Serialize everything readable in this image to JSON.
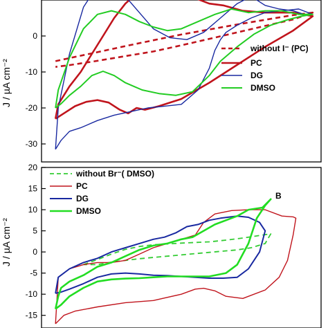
{
  "chart_data": [
    {
      "type": "line",
      "panel": "top",
      "ylabel": "J / µA cm⁻²",
      "ylim": [
        -35,
        10
      ],
      "yticks": [
        0,
        -10,
        -20,
        -30
      ],
      "xlim": [
        0,
        1
      ],
      "legend_position": "right",
      "series": [
        {
          "name": "without I⁻ (PC)",
          "color": "#c0141c",
          "style": "dashed",
          "width": 2.6,
          "x": [
            0.05,
            0.12,
            0.2,
            0.3,
            0.4,
            0.5,
            0.6,
            0.7,
            0.8,
            0.9,
            0.97,
            0.9,
            0.8,
            0.7,
            0.6,
            0.5,
            0.4,
            0.3,
            0.2,
            0.1,
            0.05
          ],
          "y": [
            -7,
            -5.8,
            -4.5,
            -2.8,
            -1.2,
            0.4,
            1.8,
            3.2,
            4.5,
            5.8,
            6.5,
            4.6,
            2.8,
            1.0,
            -0.8,
            -2.6,
            -4.3,
            -5.6,
            -6.9,
            -8.1,
            -8.6
          ]
        },
        {
          "name": "PC",
          "color": "#c0141c",
          "style": "solid",
          "width": 2.6,
          "x": [
            0.05,
            0.08,
            0.12,
            0.16,
            0.2,
            0.24,
            0.28,
            0.31,
            0.34,
            0.37,
            0.42,
            0.5,
            0.6,
            0.7,
            0.8,
            0.9,
            0.97,
            0.9,
            0.8,
            0.72,
            0.65,
            0.6,
            0.55,
            0.5,
            0.45,
            0.4,
            0.35,
            0.3,
            0.26,
            0.22,
            0.18,
            0.14,
            0.1,
            0.06,
            0.05
          ],
          "y": [
            -23,
            -21.5,
            -19.5,
            -18.3,
            -17.8,
            -18.5,
            -20.5,
            -21.5,
            -20.0,
            -20.5,
            -19.5,
            -17.5,
            -13,
            -8,
            -3,
            1.5,
            5.5,
            6.5,
            6.5,
            7.0,
            8.5,
            9.0,
            10.5,
            12.0,
            13.5,
            14.0,
            12.5,
            9.0,
            5.0,
            0.0,
            -5.0,
            -10.0,
            -14.0,
            -19.0,
            -23.0
          ]
        },
        {
          "name": "DG",
          "color": "#1828a0",
          "style": "solid",
          "width": 1.4,
          "x": [
            0.05,
            0.07,
            0.1,
            0.14,
            0.2,
            0.26,
            0.32,
            0.38,
            0.44,
            0.5,
            0.56,
            0.6,
            0.62,
            0.64,
            0.66,
            0.7,
            0.75,
            0.8,
            0.86,
            0.92,
            0.97,
            0.94,
            0.9,
            0.85,
            0.8,
            0.75,
            0.7,
            0.64,
            0.58,
            0.52,
            0.46,
            0.4,
            0.35,
            0.3,
            0.25,
            0.2,
            0.15,
            0.1,
            0.06,
            0.05
          ],
          "y": [
            -31.5,
            -29,
            -26.5,
            -25.5,
            -23.5,
            -22.0,
            -21.0,
            -20.0,
            -19.5,
            -19.0,
            -15.0,
            -9.0,
            -4.0,
            -1.0,
            1.0,
            3.0,
            5.0,
            6.5,
            7.0,
            7.5,
            6.0,
            6.0,
            7.0,
            7.5,
            8.5,
            11.0,
            9.0,
            5.0,
            1.0,
            -1.0,
            -0.5,
            2.0,
            6.5,
            11.0,
            13.5,
            14.0,
            8.0,
            -5.0,
            -20.0,
            -31.5
          ]
        },
        {
          "name": "DMSO",
          "color": "#22cc22",
          "style": "solid",
          "width": 2.0,
          "x": [
            0.05,
            0.07,
            0.1,
            0.14,
            0.18,
            0.22,
            0.26,
            0.3,
            0.36,
            0.42,
            0.48,
            0.54,
            0.6,
            0.64,
            0.7,
            0.76,
            0.82,
            0.88,
            0.93,
            0.97,
            0.92,
            0.86,
            0.8,
            0.74,
            0.68,
            0.62,
            0.56,
            0.5,
            0.45,
            0.4,
            0.35,
            0.3,
            0.25,
            0.2,
            0.15,
            0.1,
            0.06,
            0.05
          ],
          "y": [
            -20.0,
            -18.8,
            -16.5,
            -14.0,
            -11.0,
            -9.8,
            -11.0,
            -13.0,
            -15.0,
            -16.0,
            -16.5,
            -15.5,
            -11.0,
            -7.0,
            -3.0,
            0.5,
            3.0,
            4.5,
            5.5,
            6.0,
            6.0,
            7.0,
            7.0,
            6.5,
            7.5,
            6.0,
            4.0,
            2.0,
            1.5,
            2.5,
            4.0,
            6.0,
            7.0,
            6.0,
            2.0,
            -6.0,
            -15.0,
            -20.0
          ]
        }
      ]
    },
    {
      "type": "line",
      "panel": "bottom",
      "panel_label": "B",
      "ylabel": "J / µA cm⁻²",
      "ylim": [
        -18,
        20
      ],
      "yticks": [
        20,
        15,
        10,
        5,
        0,
        -5,
        -10,
        -15
      ],
      "xlim": [
        0,
        1
      ],
      "legend_position": "top-left",
      "series": [
        {
          "name": "without Br⁻( DMSO)",
          "color": "#33cc33",
          "style": "dashed",
          "width": 1.8,
          "x": [
            0.15,
            0.2,
            0.25,
            0.3,
            0.35,
            0.4,
            0.5,
            0.6,
            0.66,
            0.72,
            0.78,
            0.82,
            0.8,
            0.75,
            0.7,
            0.65,
            0.6,
            0.55,
            0.5,
            0.45,
            0.4,
            0.35,
            0.3,
            0.25,
            0.2,
            0.15
          ],
          "y": [
            -3.0,
            -1.8,
            -0.5,
            0.6,
            1.3,
            1.7,
            2.1,
            2.4,
            2.8,
            3.3,
            3.9,
            4.3,
            2.0,
            1.0,
            0.5,
            0.2,
            -0.1,
            -0.4,
            -0.7,
            -1.0,
            -1.3,
            -1.6,
            -2.0,
            -2.4,
            -3.0,
            -3.0
          ]
        },
        {
          "name": "PC",
          "color": "#c0141c",
          "style": "solid",
          "width": 1.4,
          "x": [
            0.05,
            0.08,
            0.12,
            0.2,
            0.3,
            0.4,
            0.5,
            0.55,
            0.58,
            0.62,
            0.66,
            0.72,
            0.8,
            0.85,
            0.88,
            0.9,
            0.91,
            0.9,
            0.86,
            0.8,
            0.74,
            0.68,
            0.62,
            0.58,
            0.55,
            0.5,
            0.45,
            0.4,
            0.35,
            0.3,
            0.25,
            0.2,
            0.15,
            0.1,
            0.06,
            0.05
          ],
          "y": [
            -17.0,
            -15.0,
            -14.0,
            -13.0,
            -12.0,
            -11.5,
            -10.0,
            -8.8,
            -8.6,
            -9.2,
            -10.5,
            -11.0,
            -9.0,
            -6.0,
            -2.0,
            4.0,
            8.0,
            8.3,
            8.5,
            10.0,
            10.0,
            9.8,
            9.0,
            7.0,
            4.0,
            3.0,
            2.0,
            1.0,
            -0.5,
            -2.0,
            -2.5,
            -2.5,
            -3.0,
            -4.0,
            -6.0,
            -17.0
          ]
        },
        {
          "name": "DG",
          "color": "#1828a0",
          "style": "solid",
          "width": 2.0,
          "x": [
            0.05,
            0.07,
            0.1,
            0.15,
            0.2,
            0.25,
            0.3,
            0.35,
            0.4,
            0.45,
            0.5,
            0.55,
            0.6,
            0.65,
            0.7,
            0.74,
            0.78,
            0.8,
            0.78,
            0.74,
            0.7,
            0.64,
            0.6,
            0.56,
            0.52,
            0.48,
            0.44,
            0.4,
            0.35,
            0.3,
            0.25,
            0.2,
            0.15,
            0.1,
            0.06,
            0.05
          ],
          "y": [
            -9.8,
            -9.5,
            -8.8,
            -7.5,
            -6.0,
            -5.2,
            -5.0,
            -5.2,
            -5.5,
            -5.6,
            -5.8,
            -6.0,
            -6.2,
            -6.2,
            -6.0,
            -4.0,
            0.0,
            5.0,
            7.0,
            8.2,
            8.5,
            8.0,
            7.5,
            6.5,
            6.0,
            4.5,
            3.5,
            3.0,
            2.0,
            1.0,
            0.0,
            -1.5,
            -2.5,
            -4.0,
            -6.0,
            -9.8
          ]
        },
        {
          "name": "DMSO",
          "color": "#22dd22",
          "style": "solid",
          "width": 2.6,
          "x": [
            0.05,
            0.07,
            0.1,
            0.15,
            0.2,
            0.25,
            0.3,
            0.35,
            0.4,
            0.45,
            0.5,
            0.55,
            0.6,
            0.66,
            0.7,
            0.74,
            0.77,
            0.8,
            0.82,
            0.79,
            0.74,
            0.7,
            0.66,
            0.62,
            0.58,
            0.54,
            0.5,
            0.45,
            0.4,
            0.35,
            0.3,
            0.25,
            0.2,
            0.15,
            0.1,
            0.07,
            0.06,
            0.05
          ],
          "y": [
            -13.5,
            -12.5,
            -10.5,
            -8.5,
            -7.0,
            -6.5,
            -6.3,
            -6.2,
            -6.0,
            -5.8,
            -5.8,
            -5.8,
            -5.8,
            -5.0,
            -3.0,
            2.0,
            8.0,
            11.0,
            12.5,
            10.5,
            10.0,
            8.5,
            7.5,
            6.5,
            5.0,
            3.5,
            3.0,
            2.0,
            1.5,
            0.5,
            -1.0,
            -2.5,
            -3.5,
            -5.5,
            -7.0,
            -8.5,
            -10.5,
            -13.5
          ]
        }
      ]
    }
  ]
}
